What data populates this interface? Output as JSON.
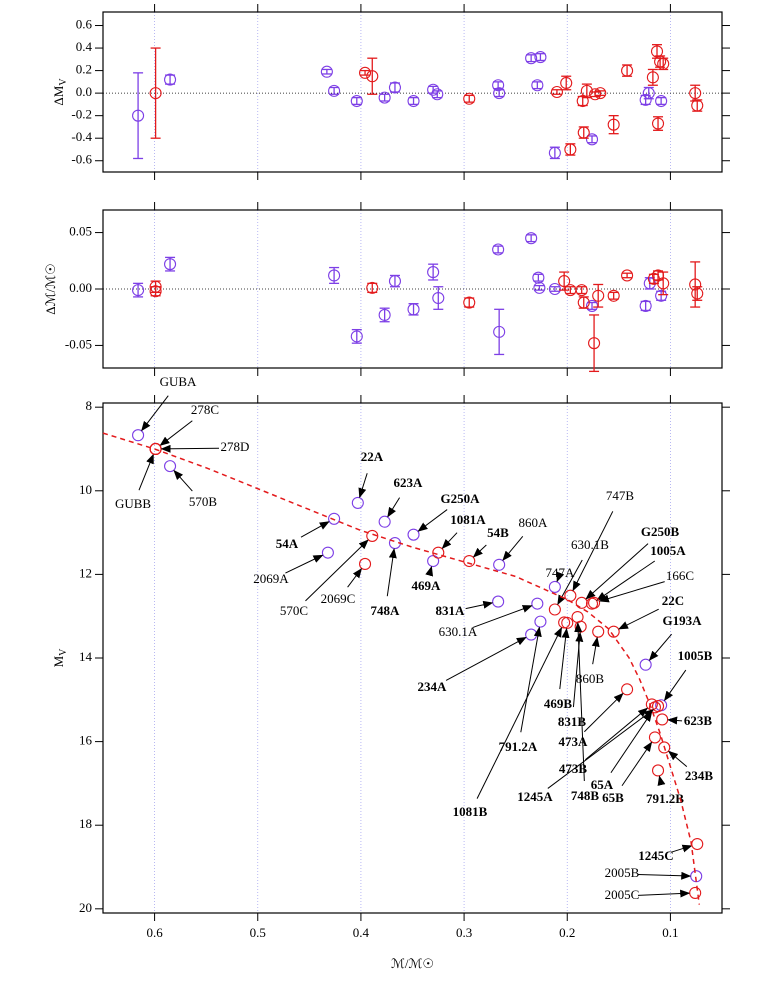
{
  "chart_data": [
    {
      "type": "scatter",
      "y_label": "ΔM",
      "y_label_sub": "V",
      "xlim": [
        0.65,
        0.05
      ],
      "xticks": [
        0.6,
        0.5,
        0.4,
        0.3,
        0.2,
        0.1
      ],
      "ylim": [
        -0.7,
        0.72
      ],
      "yticks": [
        -0.6,
        -0.4,
        -0.2,
        {
          "value": 0,
          "label": "0.0"
        },
        0.2,
        0.4,
        0.6
      ],
      "grid": true,
      "zero_line": true,
      "series": [
        {
          "color": "#7d3fe6",
          "x": [
            0.616,
            0.585,
            0.433,
            0.426,
            0.404,
            0.377,
            0.367,
            0.349,
            0.33,
            0.326,
            0.267,
            0.266,
            0.235,
            0.229,
            0.226,
            0.212,
            0.176,
            0.124,
            0.121,
            0.109
          ],
          "values": [
            -0.2,
            0.12,
            0.19,
            0.02,
            -0.07,
            -0.04,
            0.05,
            -0.07,
            0.03,
            -0.01,
            0.07,
            0.0,
            0.31,
            0.07,
            0.32,
            -0.53,
            -0.41,
            -0.06,
            0.0,
            -0.07
          ],
          "errors": [
            0.38,
            0.04,
            0.02,
            0.03,
            0.03,
            0.03,
            0.04,
            0.03,
            0.03,
            0.03,
            0.03,
            0.03,
            0.03,
            0.03,
            0.03,
            0.05,
            0.03,
            0.04,
            0.05,
            0.03
          ]
        },
        {
          "color": "#e31a1c",
          "x": [
            0.599,
            0.396,
            0.389,
            0.295,
            0.21,
            0.201,
            0.197,
            0.185,
            0.184,
            0.181,
            0.173,
            0.168,
            0.155,
            0.142,
            0.117,
            0.113,
            0.112,
            0.11,
            0.107,
            0.076,
            0.074
          ],
          "values": [
            0.0,
            0.18,
            0.15,
            -0.05,
            0.01,
            0.09,
            -0.5,
            -0.07,
            -0.35,
            0.02,
            -0.01,
            0.0,
            -0.28,
            0.2,
            0.14,
            0.37,
            -0.27,
            0.28,
            0.26,
            0.0,
            -0.11
          ],
          "errors": [
            0.4,
            0.02,
            0.16,
            0.03,
            0.02,
            0.06,
            0.05,
            0.04,
            0.05,
            0.06,
            0.02,
            0.02,
            0.08,
            0.05,
            0.07,
            0.06,
            0.06,
            0.05,
            0.05,
            0.07,
            0.05
          ]
        }
      ]
    },
    {
      "type": "scatter",
      "y_label": "Δℳ/ℳ☉",
      "xlim": [
        0.65,
        0.05
      ],
      "xticks": [
        0.6,
        0.5,
        0.4,
        0.3,
        0.2,
        0.1
      ],
      "ylim": [
        -0.07,
        0.07
      ],
      "yticks": [
        -0.05,
        {
          "value": 0,
          "label": "0.00"
        },
        0.05
      ],
      "grid": true,
      "zero_line": true,
      "series": [
        {
          "color": "#7d3fe6",
          "x": [
            0.616,
            0.585,
            0.426,
            0.404,
            0.377,
            0.367,
            0.349,
            0.33,
            0.325,
            0.267,
            0.266,
            0.235,
            0.228,
            0.227,
            0.212,
            0.176,
            0.124,
            0.12,
            0.109
          ],
          "values": [
            -0.001,
            0.022,
            0.012,
            -0.042,
            -0.023,
            0.007,
            -0.018,
            0.015,
            -0.008,
            0.035,
            -0.038,
            0.045,
            0.01,
            0.001,
            0.0,
            -0.015,
            -0.015,
            0.005,
            -0.006
          ],
          "errors": [
            0.006,
            0.006,
            0.007,
            0.006,
            0.006,
            0.005,
            0.005,
            0.007,
            0.01,
            0.003,
            0.02,
            0.003,
            0.003,
            0.002,
            0.002,
            0.003,
            0.004,
            0.005,
            0.004
          ]
        },
        {
          "color": "#e31a1c",
          "x": [
            0.599,
            0.599,
            0.389,
            0.295,
            0.203,
            0.197,
            0.186,
            0.184,
            0.174,
            0.17,
            0.155,
            0.142,
            0.116,
            0.112,
            0.107,
            0.076,
            0.074
          ],
          "values": [
            -0.002,
            0.002,
            0.001,
            -0.012,
            0.007,
            -0.001,
            -0.001,
            -0.012,
            -0.048,
            -0.006,
            -0.006,
            0.012,
            0.009,
            0.012,
            0.005,
            0.004,
            -0.004
          ],
          "errors": [
            0.004,
            0.005,
            0.004,
            0.004,
            0.008,
            0.003,
            0.003,
            0.005,
            0.025,
            0.01,
            0.003,
            0.002,
            0.004,
            0.004,
            0.01,
            0.02,
            0.006
          ]
        }
      ]
    },
    {
      "type": "scatter",
      "y_label": "M",
      "y_label_sub": "V",
      "x_label": "ℳ/ℳ☉",
      "xlim": [
        0.65,
        0.05
      ],
      "xticks": [
        0.6,
        0.5,
        0.4,
        0.3,
        0.2,
        0.1
      ],
      "ylim": [
        20.1,
        7.9
      ],
      "yticks": [
        8,
        10,
        12,
        14,
        16,
        18,
        20
      ],
      "grid": true,
      "series": [
        {
          "color": "#7d3fe6",
          "labels": [
            "GUBA",
            "570B",
            "22A",
            "54A",
            "623A",
            "G250A",
            "2069A",
            "748A",
            "469A",
            "860A",
            "831A",
            "747A",
            "630.1A",
            "234A",
            "791.2A",
            "G193A",
            "1005B",
            "2005B"
          ],
          "x": [
            0.616,
            0.585,
            0.403,
            0.426,
            0.377,
            0.349,
            0.432,
            0.367,
            0.33,
            0.266,
            0.267,
            0.212,
            0.229,
            0.235,
            0.226,
            0.124,
            0.109,
            0.075
          ],
          "values": [
            8.67,
            9.41,
            10.29,
            10.67,
            10.74,
            11.05,
            11.48,
            11.25,
            11.68,
            11.77,
            12.65,
            12.3,
            12.7,
            13.44,
            13.13,
            14.16,
            15.13,
            19.22
          ]
        },
        {
          "color": "#e31a1c",
          "labels": [
            "GUBB",
            "278C",
            "278D",
            "570C",
            "2069C",
            "1081A",
            "54B",
            "630.1B",
            "747B",
            "G250B",
            "1005A",
            "166C",
            "22C",
            "860B",
            "469B",
            "831B",
            "748B",
            "1081B",
            "473A",
            "473B",
            "65A",
            "623B",
            "65B",
            "234B",
            "1245A",
            "791.2B",
            "1245C",
            "2005C"
          ],
          "x": [
            0.599,
            0.599,
            0.599,
            0.389,
            0.396,
            0.325,
            0.295,
            0.212,
            0.197,
            0.186,
            0.176,
            0.174,
            0.155,
            0.17,
            0.2,
            0.187,
            0.19,
            0.203,
            0.142,
            0.118,
            0.115,
            0.108,
            0.115,
            0.106,
            0.112,
            0.112,
            0.074,
            0.076
          ],
          "values": [
            9.0,
            9.0,
            9.0,
            11.08,
            11.75,
            11.48,
            11.68,
            12.84,
            12.51,
            12.68,
            12.7,
            12.68,
            13.37,
            13.37,
            13.16,
            13.25,
            13.02,
            13.15,
            14.75,
            15.11,
            15.18,
            15.47,
            15.9,
            16.14,
            15.15,
            16.69,
            18.45,
            19.62
          ]
        },
        {
          "type": "line",
          "color": "#e31a1c",
          "style": "dashed",
          "x": [
            0.65,
            0.6,
            0.55,
            0.5,
            0.45,
            0.4,
            0.35,
            0.3,
            0.25,
            0.2,
            0.18,
            0.16,
            0.14,
            0.13,
            0.12,
            0.11,
            0.1,
            0.09,
            0.08,
            0.072
          ],
          "values": [
            8.62,
            9.0,
            9.45,
            9.95,
            10.45,
            10.95,
            11.35,
            11.7,
            12.05,
            12.6,
            12.9,
            13.3,
            14.0,
            14.5,
            15.1,
            15.8,
            16.6,
            17.4,
            18.4,
            19.9
          ]
        }
      ]
    }
  ]
}
